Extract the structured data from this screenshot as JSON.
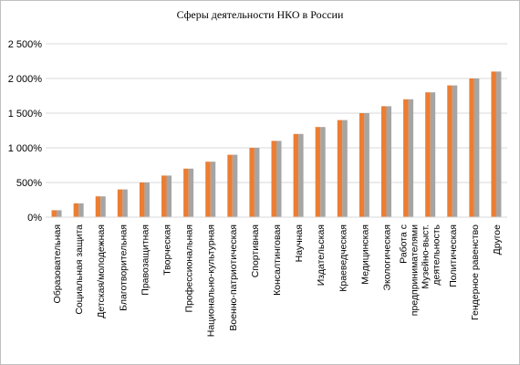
{
  "chart_data": {
    "type": "bar",
    "title": "Сферы деятельности НКО в России",
    "xlabel": "",
    "ylabel": "",
    "ylim": [
      0,
      2500
    ],
    "yticks": [
      0,
      500,
      1000,
      1500,
      2000,
      2500
    ],
    "ytick_labels": [
      "0%",
      "500%",
      "1 000%",
      "1 500%",
      "2 000%",
      "2 500%"
    ],
    "grid": true,
    "legend": "none",
    "categories": [
      [
        "Образовательная"
      ],
      [
        "Социальная защита"
      ],
      [
        "Детская/молодежная"
      ],
      [
        "Благотворительная"
      ],
      [
        "Правозащитная"
      ],
      [
        "Творческая"
      ],
      [
        "Профессиональная"
      ],
      [
        "Национально-культурная"
      ],
      [
        "Военно-патриотическая"
      ],
      [
        "Спортивная"
      ],
      [
        "Консалтинговая"
      ],
      [
        "Научная"
      ],
      [
        "Издательская"
      ],
      [
        "Краеведческая"
      ],
      [
        "Медицинская"
      ],
      [
        "Экологическая"
      ],
      [
        "Работа с",
        "предпринимателями"
      ],
      [
        "Музейно-выст.",
        "деятельность"
      ],
      [
        "Политическая"
      ],
      [
        "Гендерное равенство"
      ],
      [
        "Другое"
      ]
    ],
    "series": [
      {
        "values": [
          100,
          200,
          300,
          400,
          500,
          600,
          700,
          800,
          900,
          1000,
          1100,
          1200,
          1300,
          1400,
          1500,
          1600,
          1700,
          1800,
          1900,
          2000,
          2100
        ]
      },
      {
        "values": [
          100,
          200,
          300,
          400,
          500,
          600,
          700,
          800,
          900,
          1000,
          1100,
          1200,
          1300,
          1400,
          1500,
          1600,
          1700,
          1800,
          1900,
          2000,
          2100
        ]
      }
    ],
    "colors": {
      "series_0": "#ED7D31",
      "series_1": "#A5A5A5",
      "grid": "#D9D9D9",
      "border": "#BFBFBF"
    }
  }
}
